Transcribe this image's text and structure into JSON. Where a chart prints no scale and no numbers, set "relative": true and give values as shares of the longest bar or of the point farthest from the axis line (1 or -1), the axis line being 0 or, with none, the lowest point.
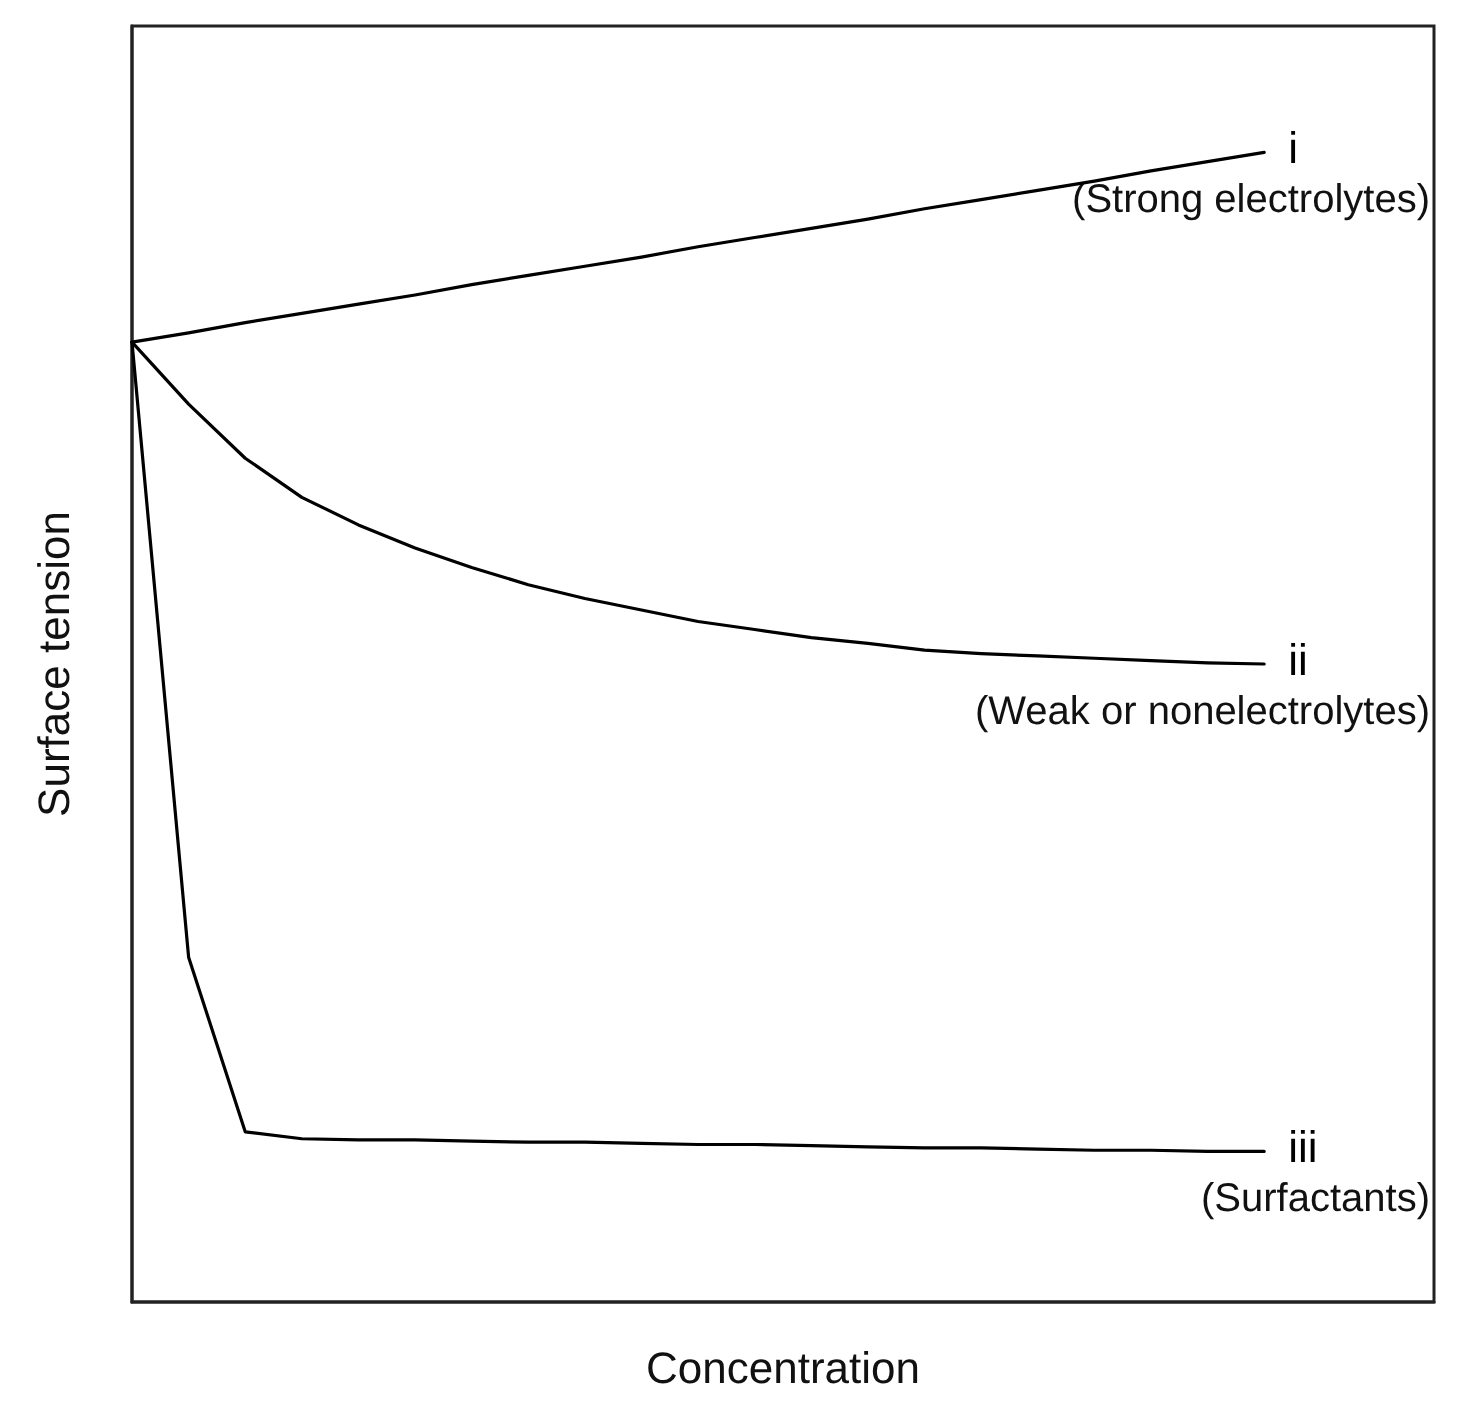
{
  "chart_data": {
    "type": "line",
    "relative": true,
    "xlabel": "Concentration",
    "ylabel": "Surface tension",
    "categories": [
      null,
      null,
      null,
      null,
      null,
      null,
      null,
      null,
      null,
      null,
      null,
      null,
      null,
      null,
      null,
      null,
      null,
      null,
      null,
      null,
      null,
      null,
      null,
      null
    ],
    "series": [
      {
        "name": "i",
        "color": "#000000",
        "values": [
          0.835,
          0.843,
          0.852,
          0.86,
          0.868,
          0.876,
          0.885,
          0.893,
          0.901,
          0.909,
          0.918,
          0.926,
          0.934,
          0.942,
          0.951,
          0.959,
          0.967,
          0.975,
          0.984,
          0.992,
          1,
          null,
          null,
          null
        ]
      },
      {
        "name": "ii",
        "color": "#000000",
        "values": [
          0.835,
          0.781,
          0.734,
          0.7,
          0.676,
          0.656,
          0.639,
          0.624,
          0.612,
          0.602,
          0.592,
          0.585,
          0.578,
          0.573,
          0.567,
          0.564,
          0.562,
          0.56,
          0.558,
          0.556,
          0.555,
          null,
          null,
          null
        ]
      },
      {
        "name": "iii",
        "color": "#000000",
        "values": [
          0.835,
          0.3,
          0.148,
          0.142,
          0.141,
          0.141,
          0.14,
          0.139,
          0.139,
          0.138,
          0.137,
          0.137,
          0.136,
          0.135,
          0.134,
          0.134,
          0.133,
          0.132,
          0.132,
          0.131,
          0.131,
          null,
          null,
          null
        ]
      }
    ],
    "annotations": [
      "(Strong electrolytes)",
      "(Weak or nonelectrolytes)",
      "(Surfactants)"
    ],
    "marker": "none",
    "line_style": "solid",
    "grid": false,
    "legend": false
  }
}
